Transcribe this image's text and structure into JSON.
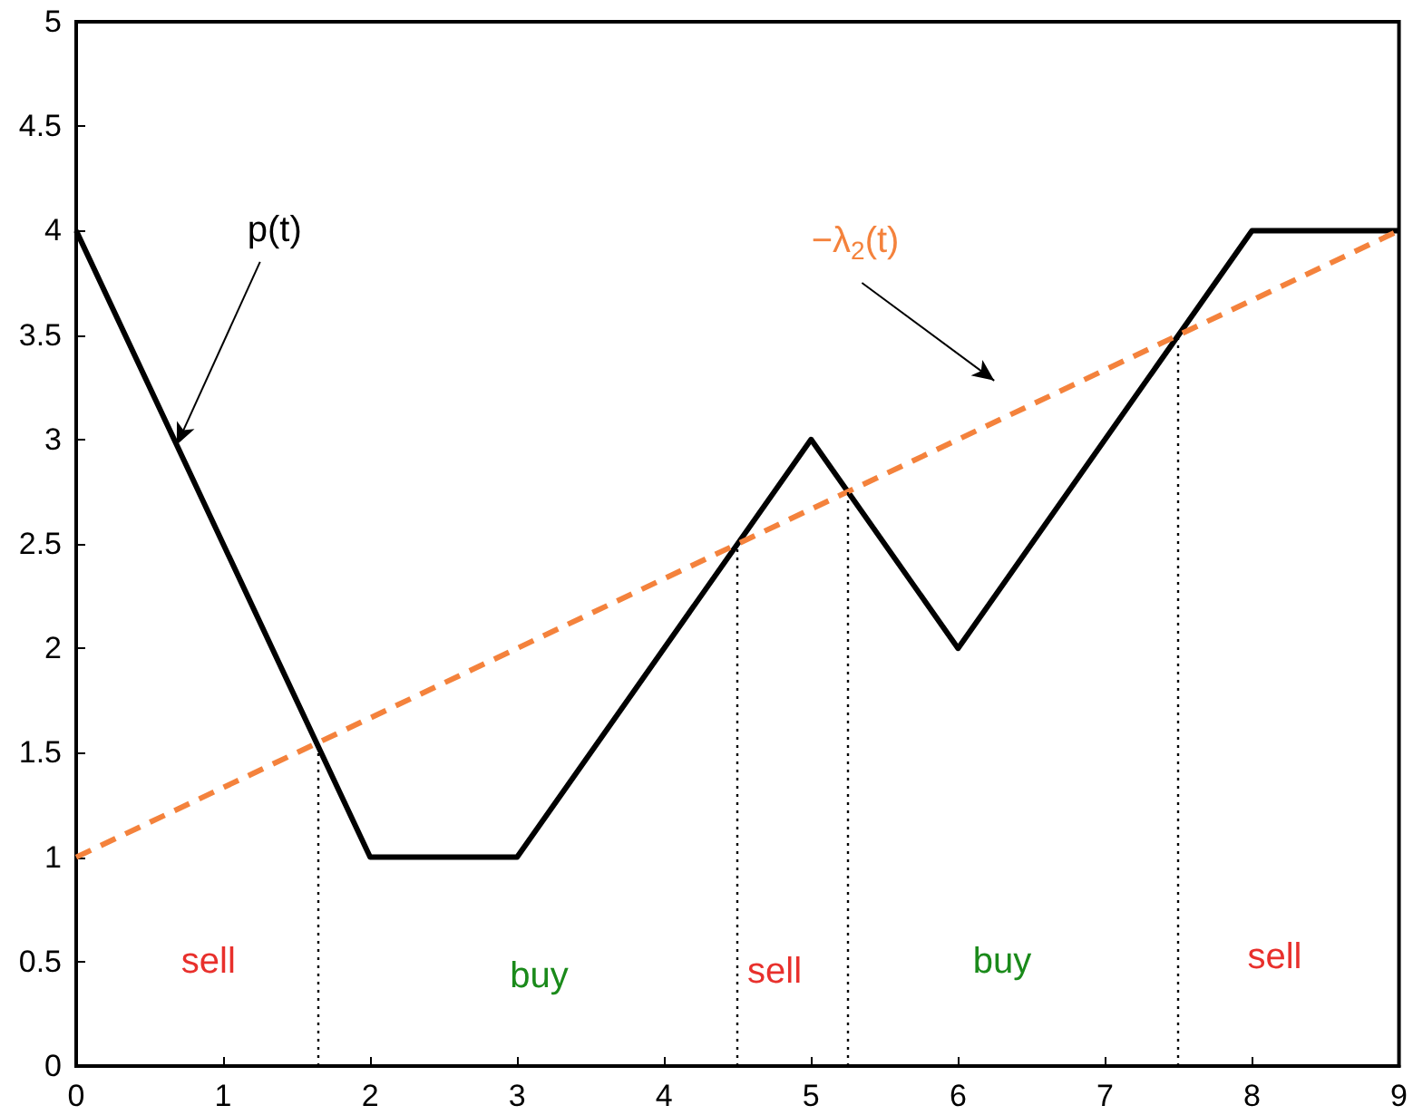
{
  "chart_data": {
    "type": "line",
    "xlim": [
      0,
      9
    ],
    "xticks": [
      0,
      1,
      2,
      3,
      4,
      5,
      6,
      7,
      8,
      9
    ],
    "ylim": [
      0,
      5
    ],
    "yticks": [
      0,
      0.5,
      1,
      1.5,
      2,
      2.5,
      3,
      3.5,
      4,
      4.5,
      5
    ],
    "grid": false,
    "marker": "none",
    "series": [
      {
        "name": "p(t)",
        "color": "#000000",
        "line_style": "solid",
        "x": [
          0,
          2,
          3,
          5,
          6,
          8,
          9
        ],
        "values": [
          4,
          1,
          1,
          3,
          2,
          4,
          4
        ]
      },
      {
        "name": "−λ$_{2}$(t)",
        "color": "#f4823c",
        "line_style": "dashed",
        "x": [
          0,
          9
        ],
        "values": [
          1,
          4
        ]
      }
    ],
    "ref_lines": [
      {
        "axis": "x",
        "value": 1.64,
        "color": "#000000",
        "line_style": "dotted"
      },
      {
        "axis": "x",
        "value": 4.5,
        "color": "#000000",
        "line_style": "dotted"
      },
      {
        "axis": "x",
        "value": 5.25,
        "color": "#000000",
        "line_style": "dotted"
      },
      {
        "axis": "x",
        "value": 7.5,
        "color": "#000000",
        "line_style": "dotted"
      }
    ],
    "annotations": [
      "sell",
      "buy",
      "sell",
      "buy",
      "sell"
    ]
  }
}
